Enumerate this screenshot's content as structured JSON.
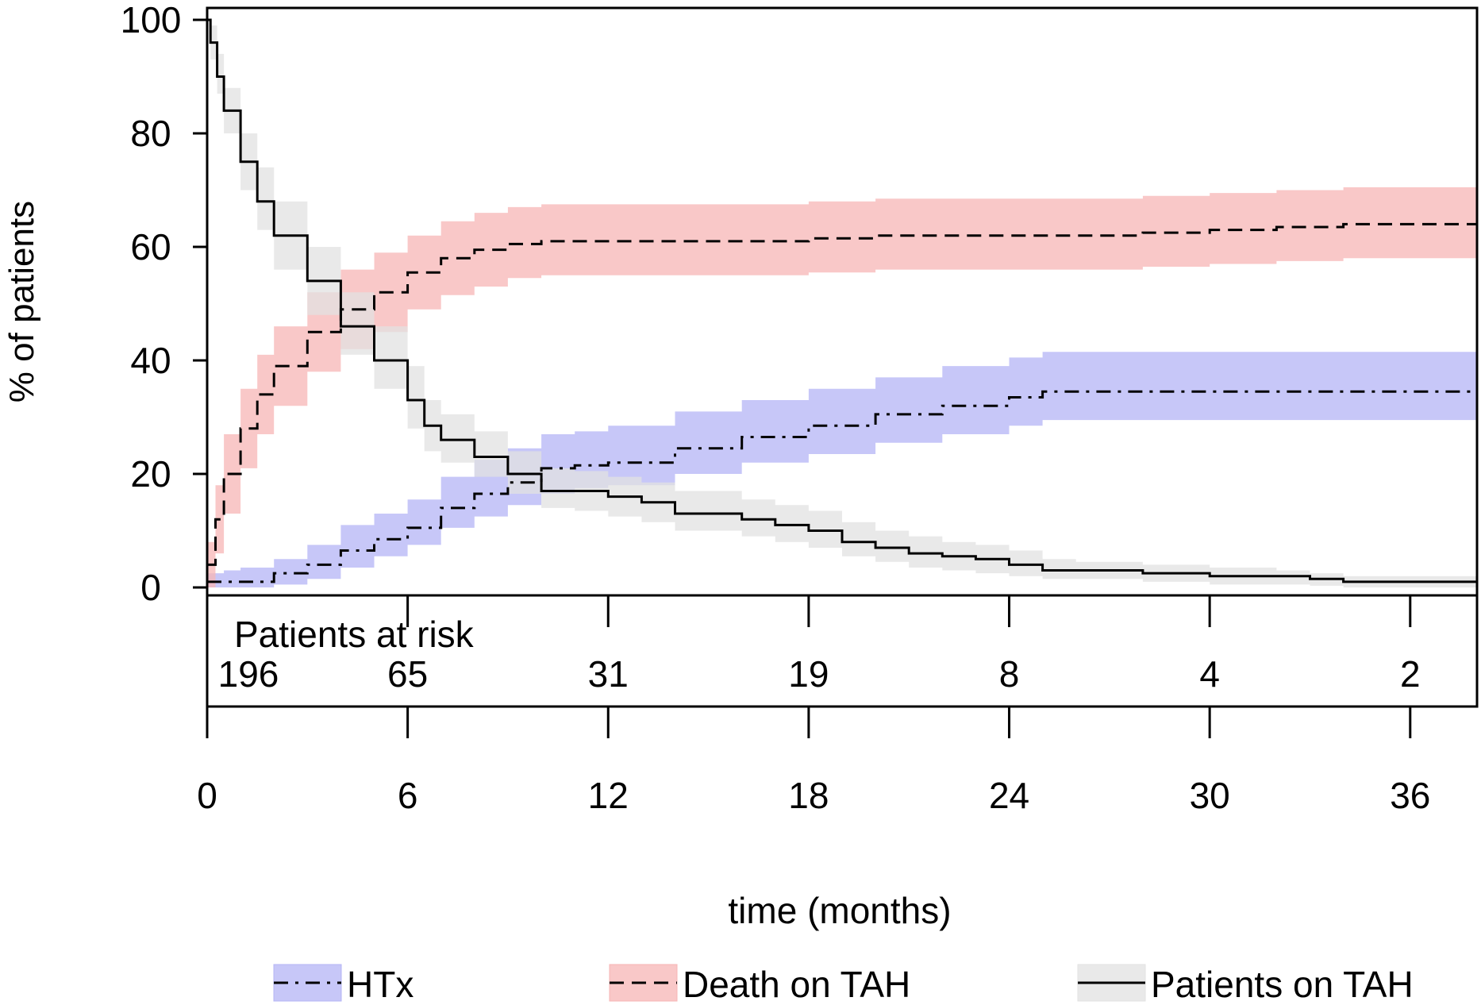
{
  "chart_data": {
    "type": "line",
    "title": "",
    "xlabel": "time (months)",
    "ylabel": "% of patients",
    "xlim": [
      0,
      38
    ],
    "ylim": [
      0,
      100
    ],
    "x_ticks": [
      0,
      6,
      12,
      18,
      24,
      30,
      36
    ],
    "y_ticks": [
      0,
      20,
      40,
      60,
      80,
      100
    ],
    "grid": false,
    "legend_position": "bottom",
    "risk_table": {
      "title": "Patients at risk",
      "times": [
        0,
        6,
        12,
        18,
        24,
        30,
        36
      ],
      "counts": [
        "196",
        "65",
        "31",
        "19",
        "8",
        "4",
        "2"
      ]
    },
    "series": [
      {
        "name": "HTx",
        "color": "#000000",
        "band_color": "#b4b4f5",
        "line_style": "dash-dot",
        "x": [
          0,
          0.5,
          1,
          2,
          3,
          4,
          5,
          6,
          7,
          8,
          9,
          10,
          11,
          12,
          14,
          16,
          18,
          20,
          22,
          24,
          25,
          28,
          30,
          34,
          38
        ],
        "y": [
          1,
          1,
          1,
          2.5,
          4,
          6.5,
          8.5,
          10.5,
          14,
          16.5,
          18.5,
          21,
          21.5,
          22,
          24.5,
          26.5,
          28.5,
          30.5,
          32,
          33.5,
          34.5,
          34.5,
          34.5,
          34.5,
          34.5
        ],
        "ci_lower": [
          0,
          0,
          0,
          0.5,
          1.5,
          3.5,
          5.5,
          7.5,
          10.5,
          12.5,
          14.5,
          16.5,
          17.5,
          18,
          20,
          22,
          23.5,
          25.5,
          27,
          28.5,
          29.5,
          29.5,
          29.5,
          29.5,
          29.5
        ],
        "ci_upper": [
          2.5,
          3,
          3.5,
          5,
          7.5,
          11,
          13,
          15.5,
          19.5,
          22.5,
          24.5,
          27,
          27.5,
          28.5,
          31,
          33,
          35,
          37,
          39,
          40.5,
          41.5,
          41.5,
          41.5,
          41.5,
          41.5
        ]
      },
      {
        "name": "Death on TAH",
        "color": "#000000",
        "band_color": "#f7b5b5",
        "line_style": "dashed",
        "x": [
          0,
          0.25,
          0.5,
          1,
          1.5,
          2,
          3,
          4,
          5,
          6,
          7,
          8,
          9,
          10,
          12,
          14,
          16,
          18,
          20,
          22,
          24,
          26,
          28,
          30,
          32,
          34,
          36,
          38
        ],
        "y": [
          4,
          12,
          20,
          28,
          34,
          39,
          45,
          49,
          52,
          55.5,
          58,
          59.5,
          60.5,
          61,
          61,
          61,
          61,
          61.5,
          62,
          62,
          62,
          62,
          62.5,
          63,
          63.5,
          64,
          64,
          64
        ],
        "ci_lower": [
          0,
          6,
          13,
          21,
          27,
          32,
          38,
          42,
          45,
          49,
          51.5,
          53,
          54.5,
          55,
          55,
          55,
          55,
          55.5,
          56,
          56,
          56,
          56,
          56.5,
          57,
          57.5,
          58,
          58,
          58
        ],
        "ci_upper": [
          8,
          18,
          27,
          35,
          41,
          46,
          52,
          56,
          59,
          62,
          64.5,
          66,
          67,
          67.5,
          67.5,
          67.5,
          67.5,
          68,
          68.5,
          68.5,
          68.5,
          68.5,
          69,
          69.5,
          70,
          70.5,
          70.5,
          70.5
        ]
      },
      {
        "name": "Patients on TAH",
        "color": "#000000",
        "band_color": "#e2e2e2",
        "line_style": "solid",
        "x": [
          0,
          0.1,
          0.3,
          0.5,
          1,
          1.5,
          2,
          3,
          4,
          5,
          6,
          6.5,
          7,
          8,
          9,
          10,
          11,
          12,
          13,
          14,
          16,
          17,
          18,
          19,
          20,
          21,
          22,
          23,
          24,
          25,
          26,
          28,
          30,
          31,
          32,
          33,
          34,
          36,
          38
        ],
        "y": [
          100,
          96,
          90,
          84,
          75,
          68,
          62,
          54,
          46,
          40,
          33,
          28.5,
          26,
          23,
          20,
          17,
          17,
          16,
          15,
          13,
          12,
          11,
          10,
          8,
          7,
          6,
          5.5,
          5,
          4,
          3,
          3,
          2.5,
          2,
          2,
          2,
          1.5,
          1,
          1,
          1
        ],
        "ci_lower": [
          100,
          93,
          87,
          80,
          70,
          63,
          56,
          48,
          41,
          35,
          28,
          24,
          22,
          19.5,
          16.5,
          14,
          13.5,
          12.5,
          11.5,
          10,
          9,
          8,
          7,
          5.5,
          4.5,
          3.5,
          3,
          2.5,
          2,
          1.5,
          1.5,
          1,
          0.5,
          0.5,
          0.5,
          0.3,
          0,
          0,
          0
        ],
        "ci_upper": [
          100,
          99,
          94,
          88,
          80,
          74,
          68,
          60,
          52,
          46,
          39,
          33,
          30.5,
          27.5,
          24,
          21,
          20.5,
          19.5,
          18.5,
          17,
          15.5,
          14.5,
          13.5,
          11.5,
          10,
          9,
          8,
          7.5,
          6.5,
          5,
          4.5,
          4,
          3.5,
          3.5,
          3,
          2.5,
          2,
          2,
          2
        ]
      }
    ]
  }
}
